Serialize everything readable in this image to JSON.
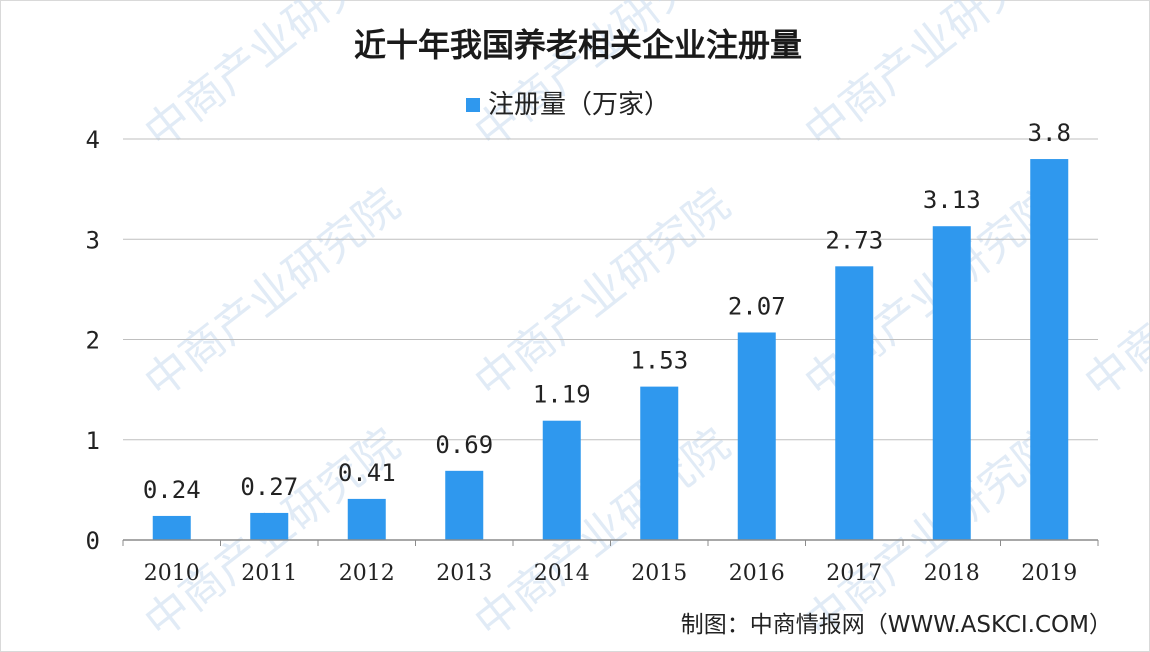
{
  "title": "近十年我国养老相关企业注册量",
  "source": "制图：中商情报网（WWW.ASKCI.COM）",
  "watermark": "中商产业研究院",
  "colors": {
    "bar": "#2f98ee",
    "grid": "#bfbfbf",
    "axis": "#8c8c8c"
  },
  "chart_data": {
    "type": "bar",
    "title": "近十年我国养老相关企业注册量",
    "categories": [
      "2010",
      "2011",
      "2012",
      "2013",
      "2014",
      "2015",
      "2016",
      "2017",
      "2018",
      "2019"
    ],
    "series": [
      {
        "name": "注册量（万家）",
        "values": [
          0.24,
          0.27,
          0.41,
          0.69,
          1.19,
          1.53,
          2.07,
          2.73,
          3.13,
          3.8
        ],
        "labels": [
          "0.24",
          "0.27",
          "0.41",
          "0.69",
          "1.19",
          "1.53",
          "2.07",
          "2.73",
          "3.13",
          "3.8"
        ]
      }
    ],
    "ylim": [
      0,
      4
    ],
    "yticks": [
      "0",
      "1",
      "2",
      "3",
      "4"
    ],
    "grid": true,
    "legend_position": "top-center"
  }
}
